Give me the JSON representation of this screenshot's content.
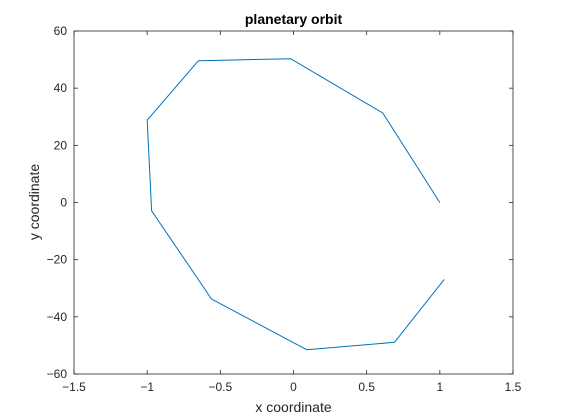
{
  "chart_data": {
    "type": "line",
    "title": "planetary orbit",
    "xlabel": "x coordinate",
    "ylabel": "y coordinate",
    "xlim": [
      -1.5,
      1.5
    ],
    "ylim": [
      -60,
      60
    ],
    "x_ticks": [
      -1.5,
      -1,
      -0.5,
      0,
      0.5,
      1,
      1.5
    ],
    "y_ticks": [
      -60,
      -40,
      -20,
      0,
      20,
      40,
      60
    ],
    "x_tick_labels": [
      "−1.5",
      "−1",
      "−0.5",
      "0",
      "0.5",
      "1",
      "1.5"
    ],
    "y_tick_labels": [
      "−60",
      "−40",
      "−20",
      "0",
      "20",
      "40",
      "60"
    ],
    "grid": false,
    "box": true,
    "series": [
      {
        "color": "#0072BD",
        "x": [
          1.0,
          0.61,
          -0.02,
          -0.65,
          -1.0,
          -0.97,
          -0.56,
          0.09,
          0.69,
          1.03
        ],
        "y": [
          0,
          31.3,
          50.3,
          49.6,
          28.8,
          -2.9,
          -33.8,
          -51.5,
          -48.9,
          -26.9
        ]
      }
    ]
  }
}
